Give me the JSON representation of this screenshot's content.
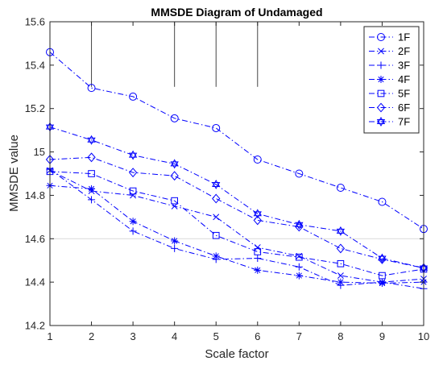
{
  "chart_data": {
    "type": "line",
    "title": "MMSDE Diagram of Undamaged",
    "xlabel": "Scale factor",
    "ylabel": "MMSDE value",
    "xlim": [
      1,
      10
    ],
    "ylim": [
      14.2,
      15.6
    ],
    "xticks": [
      "1",
      "2",
      "3",
      "4",
      "5",
      "6",
      "7",
      "8",
      "9",
      "10"
    ],
    "yticks": [
      "14.2",
      "14.4",
      "14.6",
      "14.8",
      "15",
      "15.2",
      "15.4",
      "15.6"
    ],
    "x": [
      1,
      2,
      3,
      4,
      5,
      6,
      7,
      8,
      9,
      10
    ],
    "series_color": "#0000ff",
    "line_style": "dash-dot",
    "grid": false,
    "legend_position": "top-right",
    "reference_line_y": 14.6,
    "marker_stubs_x": [
      2,
      4,
      5,
      6
    ],
    "series": [
      {
        "name": "1F",
        "marker": "circle",
        "values": [
          15.46,
          15.295,
          15.255,
          15.155,
          15.11,
          14.965,
          14.9,
          14.835,
          14.77,
          14.645
        ]
      },
      {
        "name": "2F",
        "marker": "x",
        "values": [
          14.915,
          14.82,
          14.8,
          14.75,
          14.7,
          14.56,
          14.52,
          14.43,
          14.4,
          14.415
        ]
      },
      {
        "name": "3F",
        "marker": "plus",
        "values": [
          14.92,
          14.78,
          14.635,
          14.555,
          14.505,
          14.51,
          14.47,
          14.385,
          14.4,
          14.37
        ]
      },
      {
        "name": "4F",
        "marker": "star",
        "values": [
          14.845,
          14.83,
          14.68,
          14.59,
          14.52,
          14.455,
          14.43,
          14.4,
          14.395,
          14.4
        ]
      },
      {
        "name": "5F",
        "marker": "square",
        "values": [
          14.91,
          14.9,
          14.82,
          14.775,
          14.615,
          14.54,
          14.515,
          14.485,
          14.43,
          14.46
        ]
      },
      {
        "name": "6F",
        "marker": "diamond",
        "values": [
          14.965,
          14.975,
          14.905,
          14.89,
          14.785,
          14.685,
          14.655,
          14.555,
          14.505,
          14.465
        ]
      },
      {
        "name": "7F",
        "marker": "hexagram",
        "values": [
          15.115,
          15.055,
          14.985,
          14.945,
          14.85,
          14.715,
          14.665,
          14.635,
          14.51,
          14.465
        ]
      }
    ]
  }
}
